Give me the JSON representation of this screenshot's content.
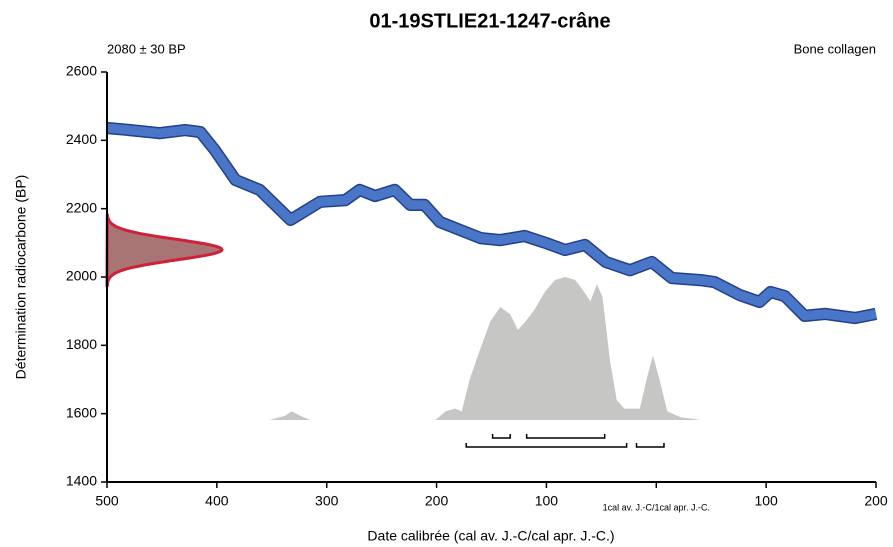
{
  "chart_data": {
    "type": "calibration",
    "title": "01-19STLIE21-1247-crâne",
    "subtitle_left": "2080 ± 30 BP",
    "subtitle_right": "Bone collagen",
    "x_label": "Date calibrée (cal av. J.-C/cal apr. J.-C.)",
    "y_label": "Détermination radiocarbone (BP)",
    "xlim": [
      -500,
      200
    ],
    "ylim": [
      1400,
      2600
    ],
    "xticks": [
      {
        "value": -500,
        "label": "500"
      },
      {
        "value": -400,
        "label": "400"
      },
      {
        "value": -300,
        "label": "300"
      },
      {
        "value": -200,
        "label": "200"
      },
      {
        "value": -100,
        "label": "100"
      },
      {
        "value": 0,
        "label": "1cal av. J.-C/1cal apr. J.-C."
      },
      100,
      200
    ],
    "yticks": [
      1400,
      1600,
      1800,
      2000,
      2200,
      2400,
      2600
    ],
    "measurement": {
      "mean": 2080,
      "sigma": 30,
      "color": "#d0213a",
      "fill": "#a87474"
    },
    "calibration_curve": {
      "color": "#4a76c8",
      "edge": "#23408a",
      "error": 15,
      "x": [
        -500,
        -479,
        -452,
        -429,
        -415,
        -402,
        -383,
        -361,
        -333,
        -306,
        -283,
        -270,
        -256,
        -238,
        -224,
        -211,
        -197,
        -179,
        -160,
        -142,
        -120,
        -101,
        -83,
        -65,
        -46,
        -24,
        -4,
        14,
        40,
        53,
        76,
        94,
        104,
        117,
        135,
        154,
        181,
        200
      ],
      "y": [
        2436,
        2430,
        2421,
        2430,
        2424,
        2372,
        2284,
        2255,
        2167,
        2220,
        2225,
        2255,
        2237,
        2255,
        2211,
        2211,
        2161,
        2138,
        2114,
        2108,
        2120,
        2100,
        2079,
        2094,
        2044,
        2020,
        2044,
        1997,
        1991,
        1985,
        1947,
        1927,
        1956,
        1944,
        1886,
        1892,
        1880,
        1892
      ]
    },
    "posterior": {
      "color": "#c6c6c4",
      "x": [
        -352,
        -338,
        -332,
        -324,
        -315,
        -201,
        -192,
        -183,
        -177,
        -170,
        -161,
        -151,
        -142,
        -133,
        -126,
        -120,
        -111,
        -101,
        -92,
        -83,
        -74,
        -67,
        -60,
        -54,
        -49,
        -42,
        -36,
        -29,
        -15,
        -8,
        -3,
        3,
        10,
        22,
        40
      ],
      "density": [
        0,
        0.03,
        0.06,
        0.03,
        0,
        0,
        0.06,
        0.08,
        0.06,
        0.28,
        0.48,
        0.69,
        0.79,
        0.74,
        0.63,
        0.68,
        0.77,
        0.9,
        0.98,
        1,
        0.98,
        0.91,
        0.83,
        0.95,
        0.86,
        0.41,
        0.14,
        0.08,
        0.08,
        0.31,
        0.45,
        0.28,
        0.06,
        0.02,
        0
      ]
    },
    "ranges_68": [
      [
        -149,
        -133
      ],
      [
        -118,
        -47
      ]
    ],
    "ranges_95": [
      [
        -173,
        -27
      ],
      [
        -18,
        7
      ]
    ]
  }
}
